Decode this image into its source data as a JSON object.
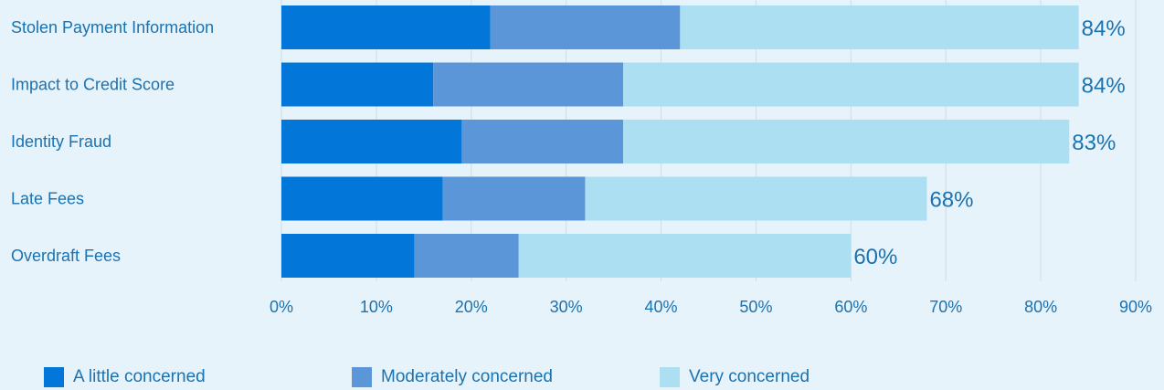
{
  "colors": {
    "background": "#e6f3fb",
    "text": "#1b72b0",
    "grid": "#cfdde6",
    "series": [
      "#0277d9",
      "#5b97d8",
      "#addff3"
    ]
  },
  "chart_data": {
    "type": "bar",
    "orientation": "horizontal",
    "stacked": true,
    "title": "",
    "xlabel": "",
    "ylabel": "",
    "xlim": [
      0,
      90
    ],
    "x_ticks": [
      "0%",
      "10%",
      "20%",
      "30%",
      "40%",
      "50%",
      "60%",
      "70%",
      "80%",
      "90%"
    ],
    "grid": true,
    "legend_position": "bottom",
    "categories": [
      "Stolen Payment Information",
      "Impact to Credit Score",
      "Identity Fraud",
      "Late Fees",
      "Overdraft Fees"
    ],
    "series": [
      {
        "name": "A little concerned",
        "values": [
          22,
          16,
          19,
          17,
          14
        ]
      },
      {
        "name": "Moderately concerned",
        "values": [
          20,
          20,
          17,
          15,
          11
        ]
      },
      {
        "name": "Very concerned",
        "values": [
          42,
          48,
          47,
          36,
          35
        ]
      }
    ],
    "totals": [
      "84%",
      "84%",
      "83%",
      "68%",
      "60%"
    ]
  }
}
